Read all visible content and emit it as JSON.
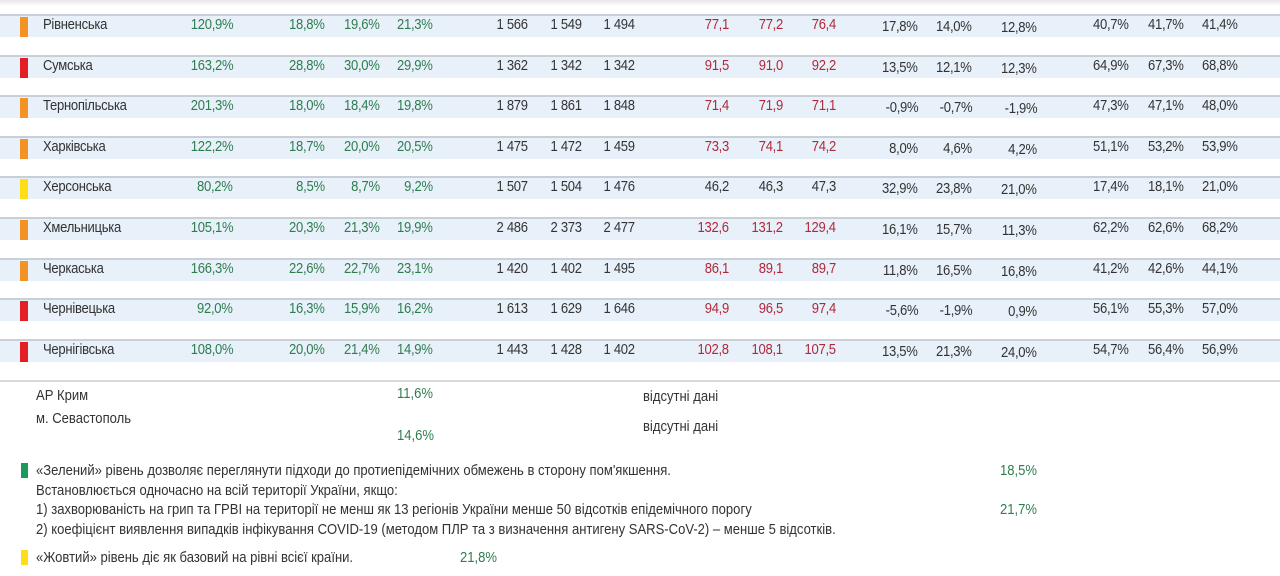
{
  "colors": {
    "red": "#e31e24",
    "orange": "#f39325",
    "yellow": "#ffde17",
    "green": "#1a9a5a",
    "positive_value": "#2e7d4f",
    "high_value": "#b0283a"
  },
  "rows": [
    {
      "level": "orange",
      "name": "Рівненська",
      "v": [
        "120,9%",
        "18,8%",
        "19,6%",
        "21,3%",
        "1 566",
        "1 549",
        "1 494",
        "77,1",
        "77,2",
        "76,4",
        "17,8%",
        "14,0%",
        "12,8%",
        "40,7%",
        "41,7%",
        "41,4%"
      ],
      "hosp_red": true
    },
    {
      "level": "red",
      "name": "Сумська",
      "v": [
        "163,2%",
        "28,8%",
        "30,0%",
        "29,9%",
        "1 362",
        "1 342",
        "1 342",
        "91,5",
        "91,0",
        "92,2",
        "13,5%",
        "12,1%",
        "12,3%",
        "64,9%",
        "67,3%",
        "68,8%"
      ],
      "hosp_red": true
    },
    {
      "level": "orange",
      "name": "Тернопільська",
      "v": [
        "201,3%",
        "18,0%",
        "18,4%",
        "19,8%",
        "1 879",
        "1 861",
        "1 848",
        "71,4",
        "71,9",
        "71,1",
        "-0,9%",
        "-0,7%",
        "-1,9%",
        "47,3%",
        "47,1%",
        "48,0%"
      ],
      "hosp_red": true
    },
    {
      "level": "orange",
      "name": "Харківська",
      "v": [
        "122,2%",
        "18,7%",
        "20,0%",
        "20,5%",
        "1 475",
        "1 472",
        "1 459",
        "73,3",
        "74,1",
        "74,2",
        "8,0%",
        "4,6%",
        "4,2%",
        "51,1%",
        "53,2%",
        "53,9%"
      ],
      "hosp_red": true
    },
    {
      "level": "yellow",
      "name": "Херсонська",
      "v": [
        "80,2%",
        "8,5%",
        "8,7%",
        "9,2%",
        "1 507",
        "1 504",
        "1 476",
        "46,2",
        "46,3",
        "47,3",
        "32,9%",
        "23,8%",
        "21,0%",
        "17,4%",
        "18,1%",
        "21,0%"
      ],
      "hosp_red": false
    },
    {
      "level": "orange",
      "name": "Хмельницька",
      "v": [
        "105,1%",
        "20,3%",
        "21,3%",
        "19,9%",
        "2 486",
        "2 373",
        "2 477",
        "132,6",
        "131,2",
        "129,4",
        "16,1%",
        "15,7%",
        "11,3%",
        "62,2%",
        "62,6%",
        "68,2%"
      ],
      "hosp_red": true
    },
    {
      "level": "orange",
      "name": "Черкаська",
      "v": [
        "166,3%",
        "22,6%",
        "22,7%",
        "23,1%",
        "1 420",
        "1 402",
        "1 495",
        "86,1",
        "89,1",
        "89,7",
        "11,8%",
        "16,5%",
        "16,8%",
        "41,2%",
        "42,6%",
        "44,1%"
      ],
      "hosp_red": true
    },
    {
      "level": "red",
      "name": "Чернівецька",
      "v": [
        "92,0%",
        "16,3%",
        "15,9%",
        "16,2%",
        "1 613",
        "1 629",
        "1 646",
        "94,9",
        "96,5",
        "97,4",
        "-5,6%",
        "-1,9%",
        "0,9%",
        "56,1%",
        "55,3%",
        "57,0%"
      ],
      "hosp_red": true
    },
    {
      "level": "red",
      "name": "Чернігівська",
      "v": [
        "108,0%",
        "20,0%",
        "21,4%",
        "14,9%",
        "1 443",
        "1 428",
        "1 402",
        "102,8",
        "108,1",
        "107,5",
        "13,5%",
        "21,3%",
        "24,0%",
        "54,7%",
        "56,4%",
        "56,9%"
      ],
      "hosp_red": true
    }
  ],
  "extra": {
    "crimea": "АР Крим",
    "crimea_val": "11,6%",
    "crimea_na": "відсутні дані",
    "sevastopol": "м. Севастополь",
    "sevastopol_val": "14,6%",
    "sevastopol_na": "відсутні дані",
    "overlap1": "18,5%",
    "overlap2": "21,7%",
    "overlap3": "21,8%"
  },
  "legend": {
    "green_line": "«Зелений» рівень дозволяє переглянути підходи до протиепідемічних обмежень в сторону пом'якшення.",
    "green_sub": "Встановлюється одночасно на всій території України, якщо:",
    "cond1": "1) захворюваність на грип та ГРВІ на території не менш як 13 регіонів України менше 50 відсотків епідемічного порогу",
    "cond2": "2) коефіцієнт виявлення випадків інфікування COVID-19 (методом ПЛР та з визначення антигену SARS-CoV-2) – менше 5 відсотків.",
    "yellow_line": "«Жовтий» рівень діє як базовий на рівні всієї країни."
  }
}
